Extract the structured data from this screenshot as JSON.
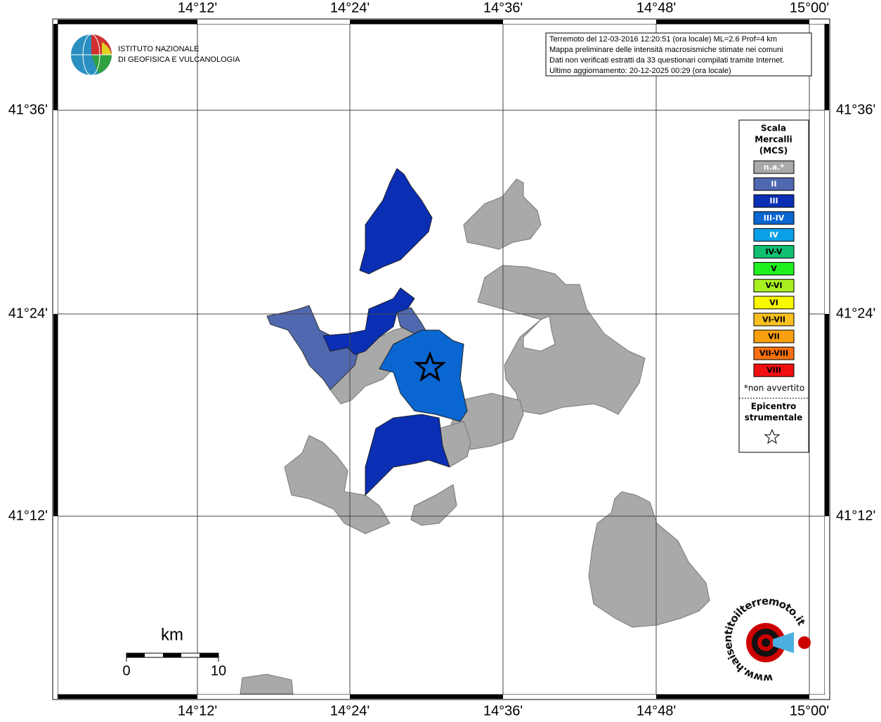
{
  "header": {
    "title_lines": [
      "ISTITUTO NAZIONALE",
      "DI GEOFISICA E VULCANOLOGIA"
    ]
  },
  "info_box": {
    "lines": [
      "Terremoto del 12-03-2016 12:20:51 (ora locale) ML=2.6 Prof=4 km",
      "Mappa preliminare delle intensità macrosismiche stimate nei comuni",
      "Dati non verificati estratti da 33 questionari compilati tramite Internet.",
      "Ultimo aggiornamento: 20-12-2025 00:29 (ora locale)"
    ]
  },
  "map": {
    "longitude_labels": [
      "14°12'",
      "14°24'",
      "14°36'",
      "14°48'",
      "15°00'"
    ],
    "latitude_labels": [
      "41°36'",
      "41°24'",
      "41°12'"
    ]
  },
  "legend": {
    "title_lines": [
      "Scala",
      "Mercalli",
      "(MCS)"
    ],
    "items": [
      {
        "label": "n.a.*",
        "color": "#a9a9a9",
        "text_color": "#ffffff"
      },
      {
        "label": "II",
        "color": "#4f68b0",
        "text_color": "#ffffff"
      },
      {
        "label": "III",
        "color": "#0a2fb4",
        "text_color": "#ffffff"
      },
      {
        "label": "III-IV",
        "color": "#0a66d0",
        "text_color": "#ffffff"
      },
      {
        "label": "IV",
        "color": "#0aa0e8",
        "text_color": "#ffffff"
      },
      {
        "label": "IV-V",
        "color": "#10c070",
        "text_color": "#000000"
      },
      {
        "label": "V",
        "color": "#20f020",
        "text_color": "#000000"
      },
      {
        "label": "V-VI",
        "color": "#a8f020",
        "text_color": "#000000"
      },
      {
        "label": "VI",
        "color": "#f8f800",
        "text_color": "#000000"
      },
      {
        "label": "VI-VII",
        "color": "#f8c020",
        "text_color": "#000000"
      },
      {
        "label": "VII",
        "color": "#f8a010",
        "text_color": "#000000"
      },
      {
        "label": "VII-VIII",
        "color": "#f87010",
        "text_color": "#000000"
      },
      {
        "label": "VIII",
        "color": "#f01010",
        "text_color": "#000000"
      }
    ],
    "footnote": "*non avvertito",
    "epicenter_lines": [
      "Epicentro",
      "strumentale"
    ]
  },
  "scale_bar": {
    "unit": "km",
    "labels": [
      "0",
      "10"
    ]
  },
  "site_logo": {
    "text": "www.haisentitoilterremoto.it"
  }
}
